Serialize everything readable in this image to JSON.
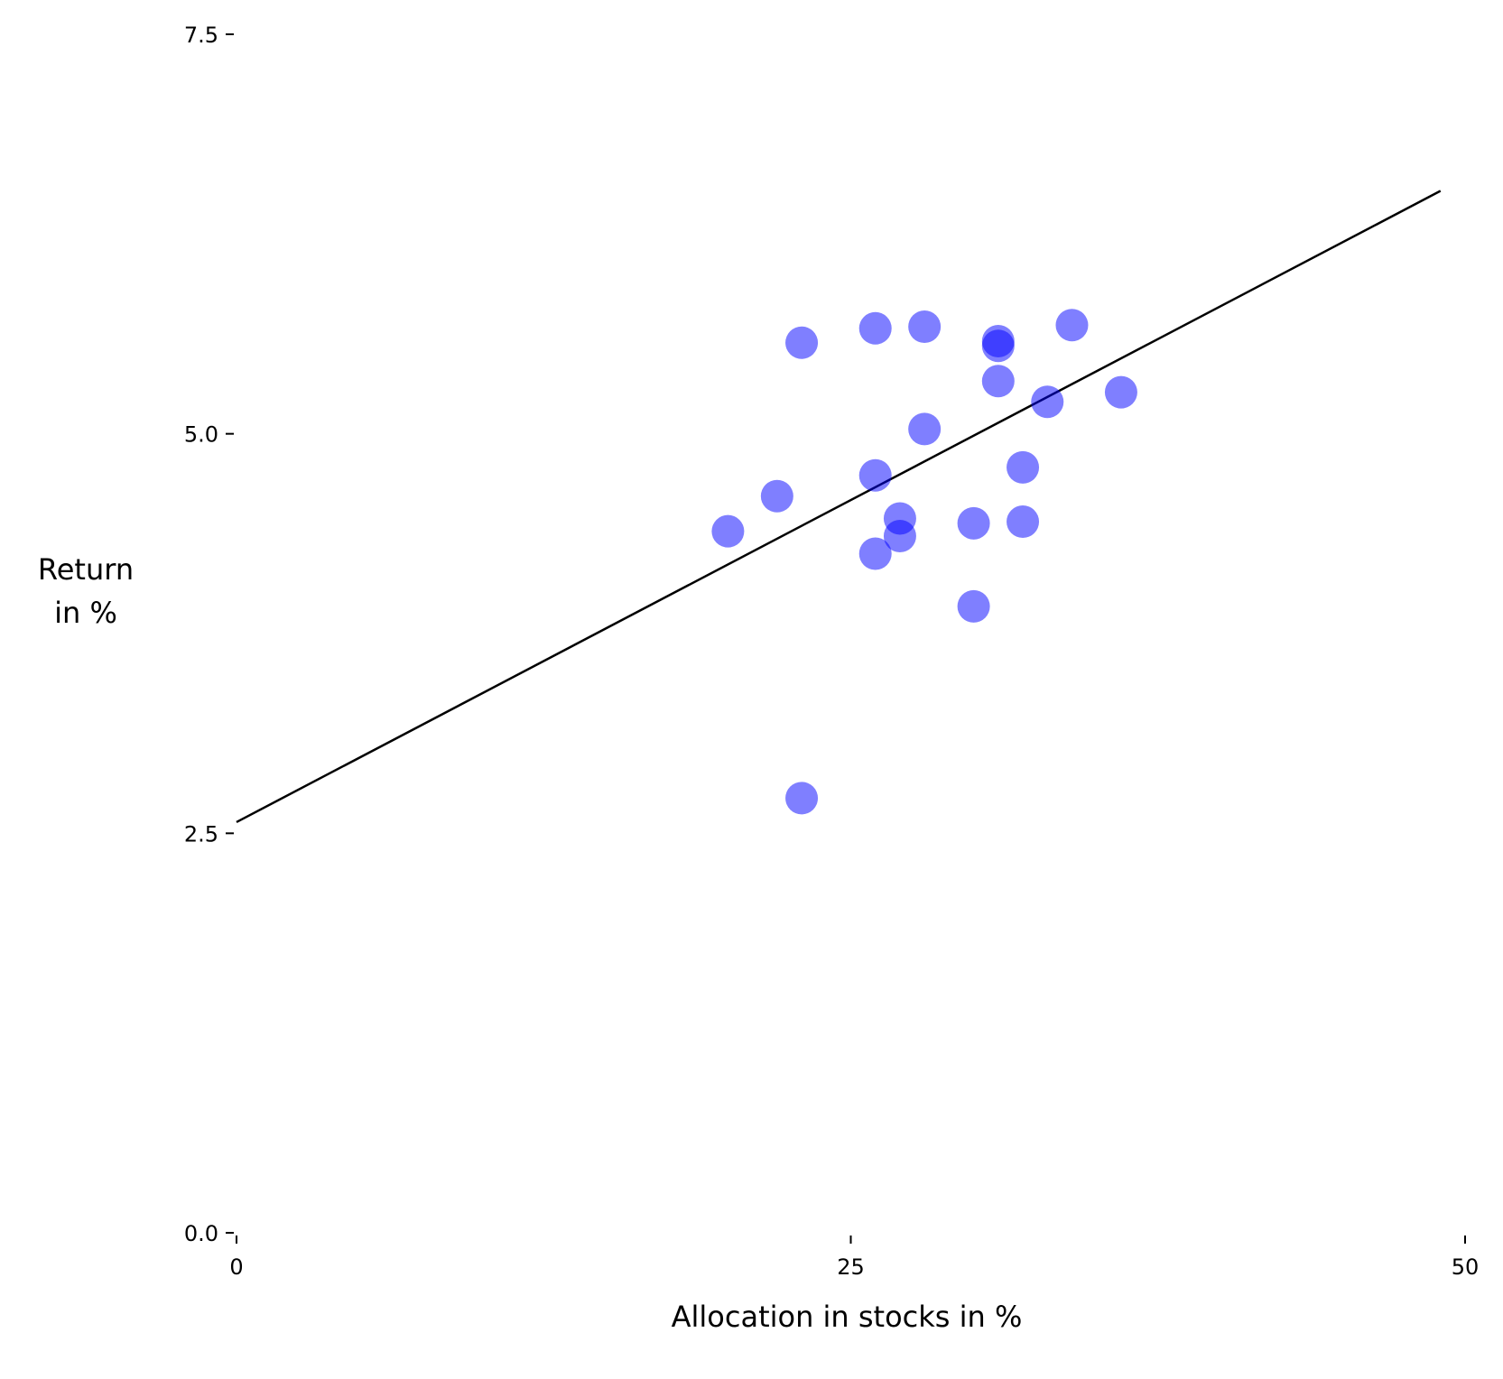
{
  "chart_data": {
    "type": "scatter",
    "title": "",
    "xlabel": "Allocation in stocks in %",
    "ylabel_lines": [
      "Return",
      "in %"
    ],
    "xlim": [
      0,
      50
    ],
    "ylim": [
      0,
      7.5
    ],
    "xticks": [
      0,
      25,
      50
    ],
    "xtick_labels": [
      "0",
      "25",
      "50"
    ],
    "yticks": [
      0,
      2.5,
      5.0,
      7.5
    ],
    "ytick_labels": [
      "0.0",
      "2.5",
      "5.0",
      "7.5"
    ],
    "grid": false,
    "series": [
      {
        "marker_color": "#0000ff",
        "marker_opacity": 0.5,
        "points": [
          {
            "x": 23,
            "y": 5.57
          },
          {
            "x": 26,
            "y": 5.66
          },
          {
            "x": 28,
            "y": 5.67
          },
          {
            "x": 31,
            "y": 5.58
          },
          {
            "x": 31,
            "y": 5.55
          },
          {
            "x": 34,
            "y": 5.68
          },
          {
            "x": 31,
            "y": 5.33
          },
          {
            "x": 33,
            "y": 5.2
          },
          {
            "x": 36,
            "y": 5.26
          },
          {
            "x": 28,
            "y": 5.03
          },
          {
            "x": 26,
            "y": 4.74
          },
          {
            "x": 32,
            "y": 4.79
          },
          {
            "x": 22,
            "y": 4.61
          },
          {
            "x": 27,
            "y": 4.47
          },
          {
            "x": 20,
            "y": 4.39
          },
          {
            "x": 27,
            "y": 4.36
          },
          {
            "x": 30,
            "y": 4.44
          },
          {
            "x": 32,
            "y": 4.45
          },
          {
            "x": 26,
            "y": 4.25
          },
          {
            "x": 30,
            "y": 3.92
          },
          {
            "x": 23,
            "y": 2.72
          }
        ]
      }
    ],
    "trend_line": {
      "color": "#000000",
      "x": [
        0,
        49
      ],
      "y": [
        2.57,
        6.52
      ]
    }
  }
}
